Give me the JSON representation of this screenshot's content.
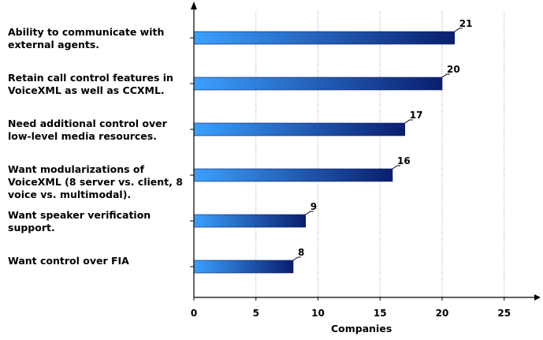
{
  "chart_data": {
    "type": "bar",
    "orientation": "horizontal",
    "categories": [
      "Ability to communicate with\nexternal agents.",
      "Retain call control features in\nVoiceXML as well as CCXML.",
      "Need additional control over\nlow-level media resources.",
      "Want modularizations of\nVoiceXML (8 server vs. client, 8\nvoice vs. multimodal).",
      "Want speaker verification\nsupport.",
      "Want control over FIA"
    ],
    "values": [
      21,
      20,
      17,
      16,
      9,
      8
    ],
    "data_labels": [
      "21",
      "20",
      "17",
      "16",
      "9",
      "8"
    ],
    "xlabel": "Companies",
    "ylabel": "",
    "title": "",
    "xlim": [
      0,
      27
    ],
    "xticks": [
      0,
      5,
      10,
      15,
      20,
      25
    ],
    "xtick_labels": [
      "0",
      "5",
      "10",
      "15",
      "20",
      "25"
    ],
    "grid": "vertical dotted",
    "bar_color_light": "#3ca0ff",
    "bar_color_dark": "#0a1e6e"
  }
}
